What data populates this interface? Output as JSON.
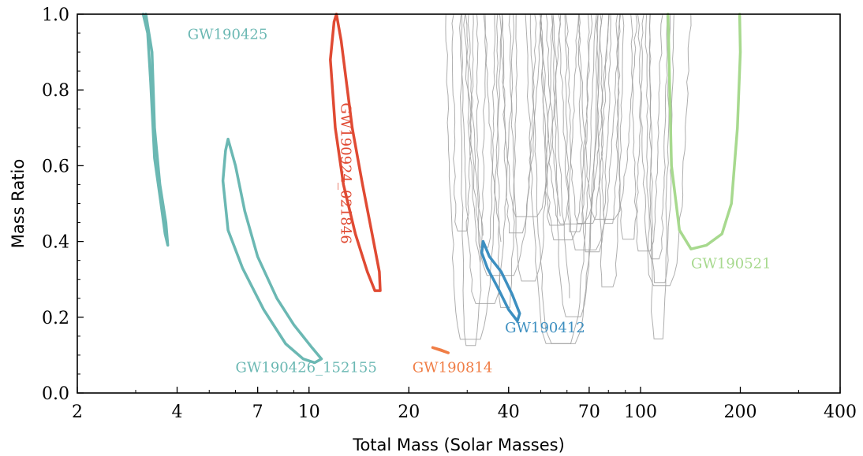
{
  "chart_data": {
    "type": "line",
    "title": "",
    "xlabel": "Total Mass (Solar Masses)",
    "ylabel": "Mass Ratio",
    "xscale": "log",
    "xlim": [
      2,
      400
    ],
    "ylim": [
      0,
      1
    ],
    "x_ticks": [
      2,
      4,
      7,
      10,
      20,
      40,
      70,
      100,
      200,
      400
    ],
    "y_ticks": [
      0.0,
      0.2,
      0.4,
      0.6,
      0.8,
      1.0
    ],
    "x_tick_labels": [
      "2",
      "4",
      "7",
      "10",
      "20",
      "40",
      "70",
      "100",
      "200",
      "400"
    ],
    "y_tick_labels": [
      "0.0",
      "0.2",
      "0.4",
      "0.6",
      "0.8",
      "1.0"
    ],
    "grid": false,
    "series": [
      {
        "name": "GW190425",
        "color": "#6bb8b3",
        "label_pos": [
          4.3,
          0.935
        ],
        "points": [
          [
            3.22,
            1.0
          ],
          [
            3.36,
            0.9
          ],
          [
            3.42,
            0.7
          ],
          [
            3.55,
            0.55
          ],
          [
            3.7,
            0.45
          ],
          [
            3.75,
            0.39
          ],
          [
            3.68,
            0.42
          ],
          [
            3.55,
            0.52
          ],
          [
            3.42,
            0.62
          ],
          [
            3.33,
            0.82
          ],
          [
            3.26,
            0.95
          ],
          [
            3.16,
            1.0
          ]
        ]
      },
      {
        "name": "GW190426_152155",
        "color": "#6bb8b3",
        "label_pos": [
          6.0,
          0.055
        ],
        "points": [
          [
            5.7,
            0.67
          ],
          [
            6.0,
            0.6
          ],
          [
            6.4,
            0.48
          ],
          [
            7.0,
            0.36
          ],
          [
            8.0,
            0.25
          ],
          [
            9.0,
            0.18
          ],
          [
            10.2,
            0.12
          ],
          [
            10.9,
            0.09
          ],
          [
            10.4,
            0.08
          ],
          [
            9.6,
            0.09
          ],
          [
            8.5,
            0.13
          ],
          [
            7.3,
            0.22
          ],
          [
            6.3,
            0.33
          ],
          [
            5.7,
            0.43
          ],
          [
            5.5,
            0.56
          ],
          [
            5.6,
            0.64
          ],
          [
            5.7,
            0.67
          ]
        ]
      },
      {
        "name": "GW190924_021846",
        "color": "#e04a33",
        "label_pos": [
          12.5,
          0.58
        ],
        "label_rotation": 90,
        "points": [
          [
            12.1,
            1.0
          ],
          [
            12.5,
            0.93
          ],
          [
            13.5,
            0.7
          ],
          [
            14.5,
            0.55
          ],
          [
            15.5,
            0.42
          ],
          [
            16.3,
            0.32
          ],
          [
            16.4,
            0.27
          ],
          [
            15.8,
            0.27
          ],
          [
            15.0,
            0.32
          ],
          [
            13.8,
            0.42
          ],
          [
            12.7,
            0.55
          ],
          [
            12.0,
            0.7
          ],
          [
            11.6,
            0.88
          ],
          [
            11.9,
            0.98
          ],
          [
            12.1,
            1.0
          ]
        ]
      },
      {
        "name": "GW190814",
        "color": "#f07d45",
        "label_pos": [
          20.5,
          0.055
        ],
        "points": [
          [
            23.6,
            0.12
          ],
          [
            24.9,
            0.113
          ],
          [
            26.3,
            0.106
          ],
          [
            25.1,
            0.113
          ],
          [
            23.6,
            0.12
          ]
        ]
      },
      {
        "name": "GW190412",
        "color": "#3d8fc0",
        "label_pos": [
          39.0,
          0.16
        ],
        "points": [
          [
            33.5,
            0.4
          ],
          [
            35.0,
            0.36
          ],
          [
            38.0,
            0.32
          ],
          [
            41.0,
            0.26
          ],
          [
            43.2,
            0.21
          ],
          [
            42.5,
            0.19
          ],
          [
            40.0,
            0.22
          ],
          [
            37.0,
            0.28
          ],
          [
            34.5,
            0.33
          ],
          [
            33.2,
            0.37
          ],
          [
            33.5,
            0.4
          ]
        ]
      },
      {
        "name": "GW190521",
        "color": "#a7d98e",
        "label_pos": [
          142,
          0.33
        ],
        "points": [
          [
            121,
            1.0
          ],
          [
            124,
            0.6
          ],
          [
            131,
            0.43
          ],
          [
            142,
            0.38
          ],
          [
            158,
            0.39
          ],
          [
            176,
            0.42
          ],
          [
            188,
            0.5
          ],
          [
            196,
            0.7
          ],
          [
            200,
            0.9
          ],
          [
            199,
            1.0
          ]
        ]
      }
    ],
    "background_contours": {
      "color": "#a0a0a0",
      "x_range": [
        17,
        125
      ],
      "description": "many thin gray contours"
    }
  }
}
